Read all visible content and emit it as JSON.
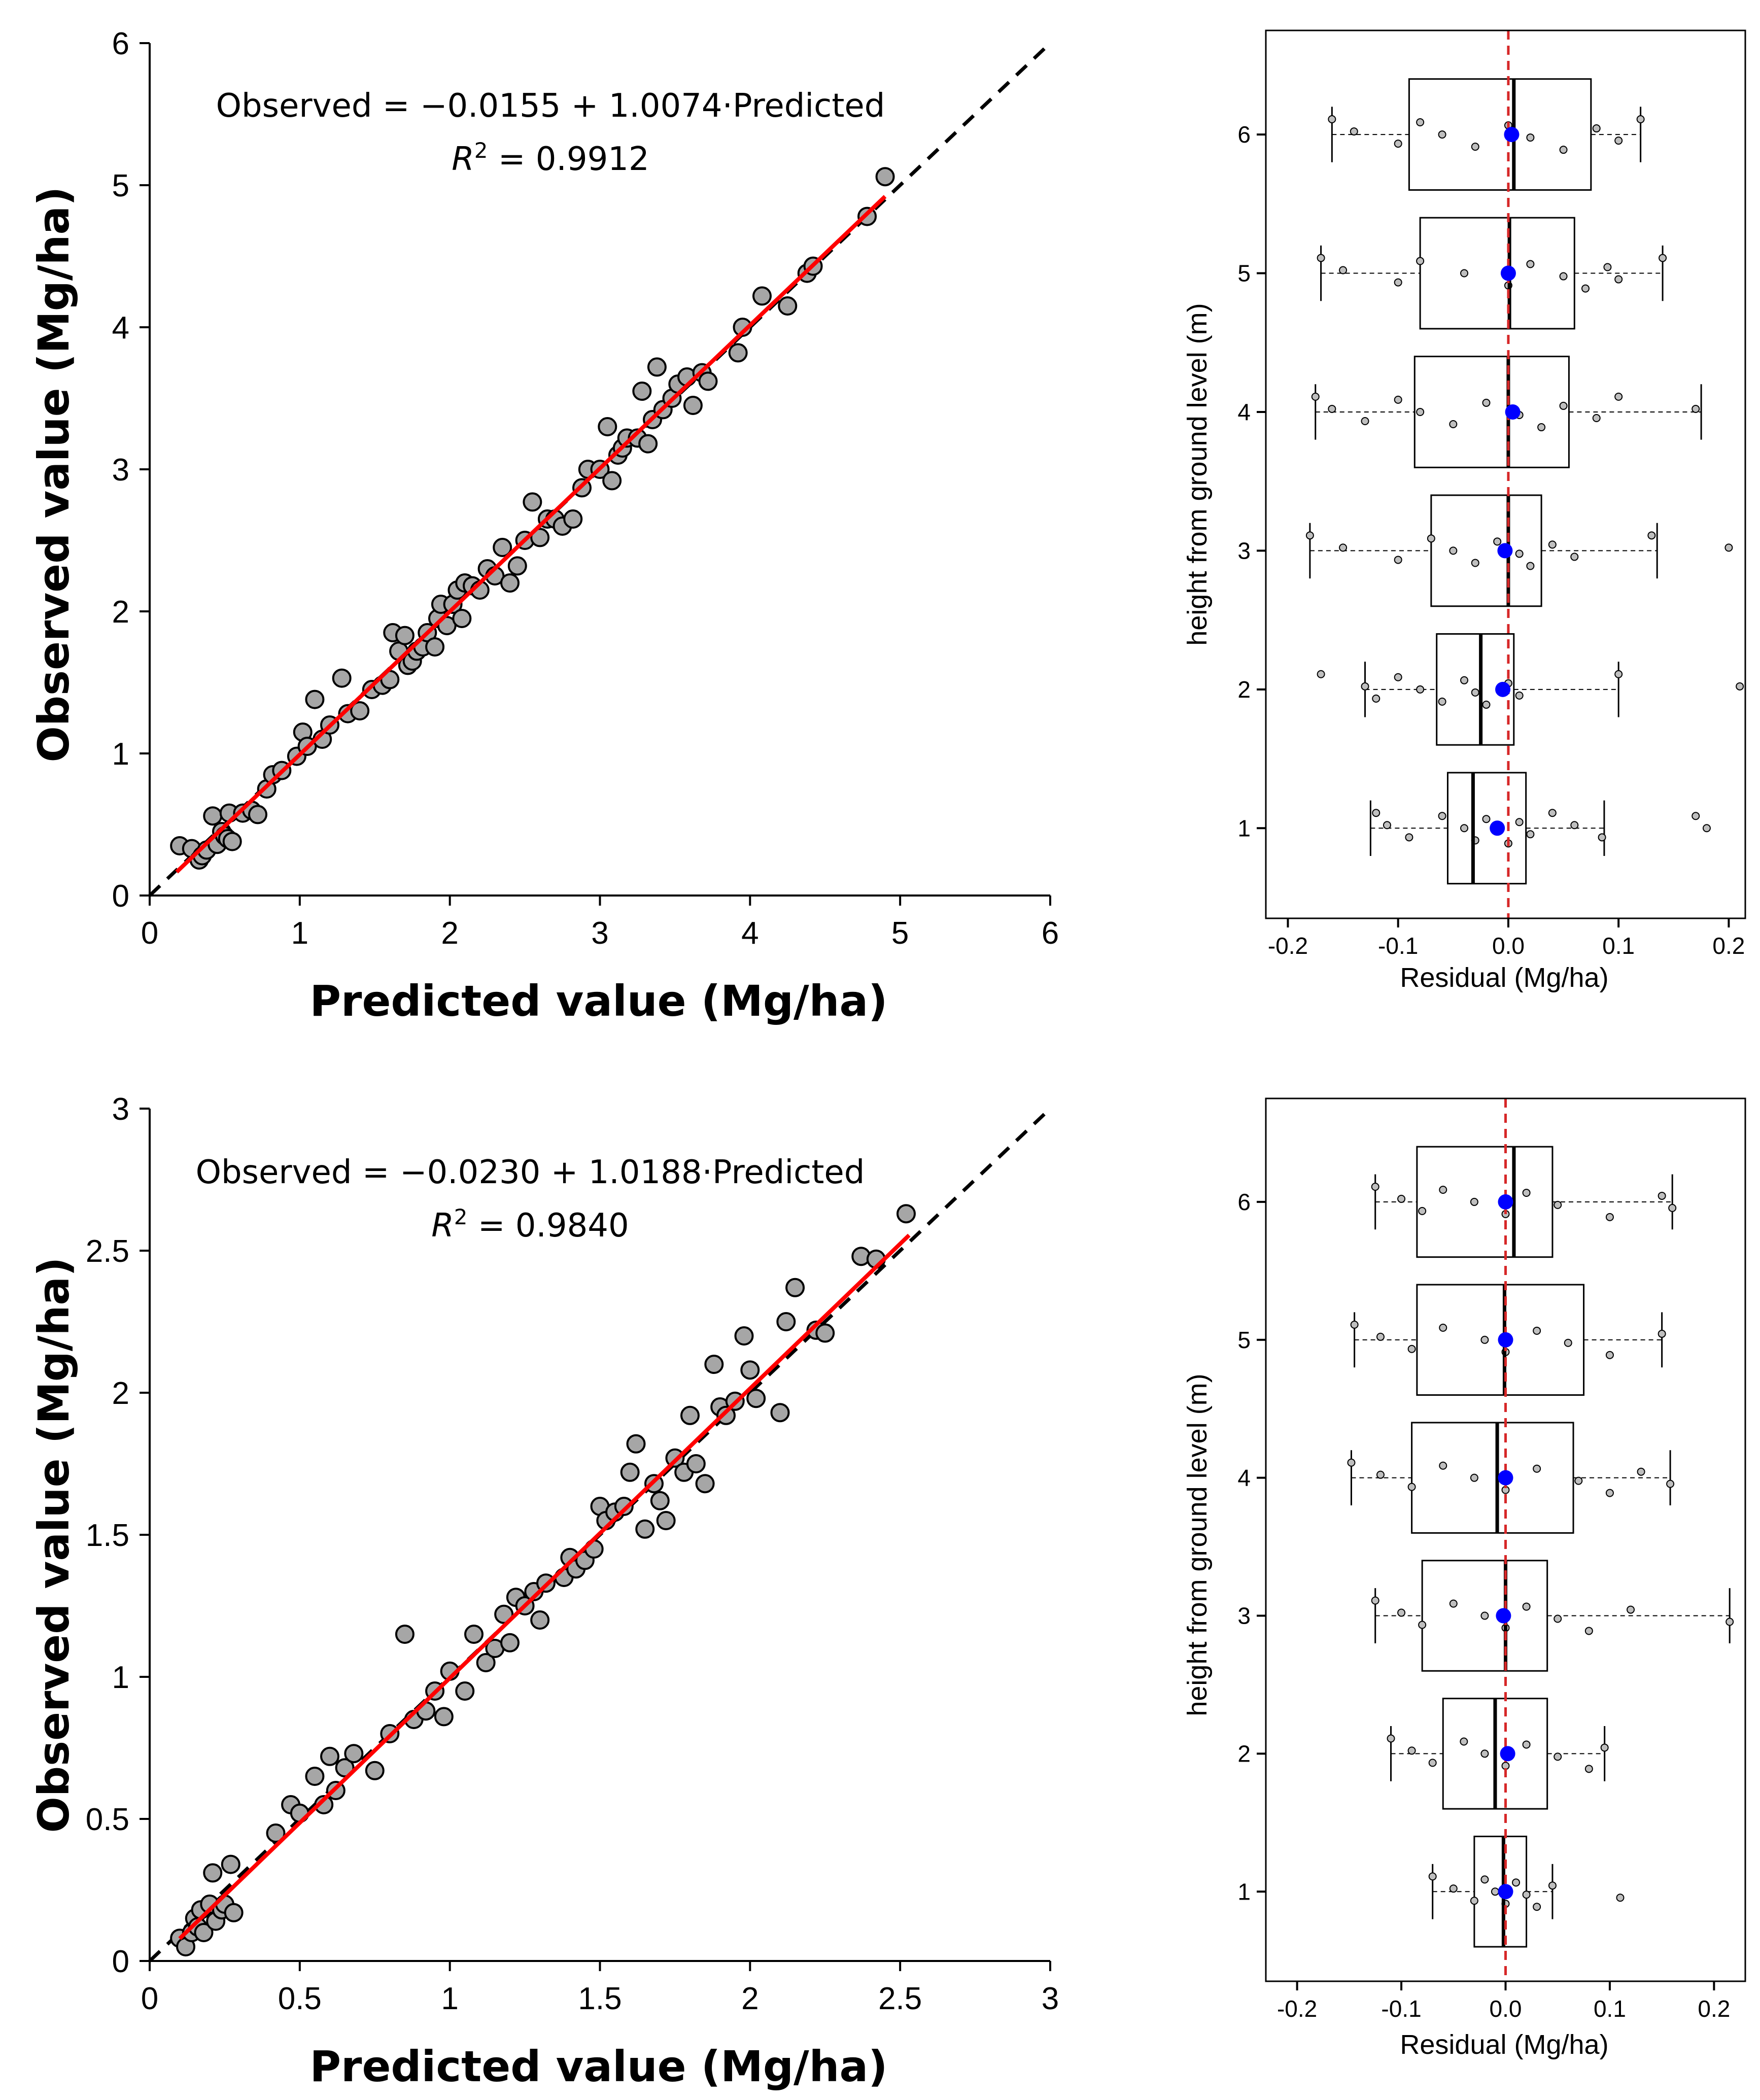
{
  "colors": {
    "point_fill": "#a6a6a6",
    "fit_line": "#ff0000",
    "one_to_one": "#000000",
    "mean_marker": "#0000ff",
    "zero_line": "#d62728",
    "jitter_fill": "#bfbfbf"
  },
  "chart_data": [
    {
      "type": "scatter",
      "panel": "top-left",
      "xlabel": "Predicted value (Mg/ha)",
      "ylabel": "Observed value (Mg/ha)",
      "xlim": [
        0,
        6
      ],
      "ylim": [
        0,
        6
      ],
      "xticks": [
        "0",
        "1",
        "2",
        "3",
        "4",
        "5",
        "6"
      ],
      "yticks": [
        "0",
        "1",
        "2",
        "3",
        "4",
        "5",
        "6"
      ],
      "equation": "Observed = −0.0155 + 1.0074·Predicted",
      "r2_label": "R",
      "r2_sup": "2",
      "r2_value": " = 0.9912",
      "intercept": -0.0155,
      "slope": 1.0074,
      "fit_range": [
        0.18,
        4.9
      ],
      "one_to_one": true,
      "points": [
        [
          0.2,
          0.35
        ],
        [
          0.28,
          0.33
        ],
        [
          0.33,
          0.25
        ],
        [
          0.35,
          0.28
        ],
        [
          0.38,
          0.32
        ],
        [
          0.42,
          0.56
        ],
        [
          0.45,
          0.36
        ],
        [
          0.48,
          0.45
        ],
        [
          0.5,
          0.42
        ],
        [
          0.52,
          0.4
        ],
        [
          0.53,
          0.58
        ],
        [
          0.55,
          0.38
        ],
        [
          0.62,
          0.58
        ],
        [
          0.68,
          0.6
        ],
        [
          0.72,
          0.57
        ],
        [
          0.78,
          0.75
        ],
        [
          0.82,
          0.85
        ],
        [
          0.88,
          0.88
        ],
        [
          0.98,
          0.98
        ],
        [
          1.02,
          1.15
        ],
        [
          1.05,
          1.05
        ],
        [
          1.1,
          1.38
        ],
        [
          1.15,
          1.1
        ],
        [
          1.2,
          1.2
        ],
        [
          1.28,
          1.53
        ],
        [
          1.32,
          1.28
        ],
        [
          1.4,
          1.3
        ],
        [
          1.48,
          1.45
        ],
        [
          1.55,
          1.48
        ],
        [
          1.6,
          1.52
        ],
        [
          1.62,
          1.85
        ],
        [
          1.66,
          1.72
        ],
        [
          1.7,
          1.83
        ],
        [
          1.72,
          1.62
        ],
        [
          1.75,
          1.65
        ],
        [
          1.78,
          1.72
        ],
        [
          1.82,
          1.75
        ],
        [
          1.85,
          1.85
        ],
        [
          1.9,
          1.75
        ],
        [
          1.92,
          1.95
        ],
        [
          1.94,
          2.05
        ],
        [
          1.98,
          1.9
        ],
        [
          2.02,
          2.05
        ],
        [
          2.05,
          2.15
        ],
        [
          2.08,
          1.95
        ],
        [
          2.1,
          2.2
        ],
        [
          2.15,
          2.18
        ],
        [
          2.2,
          2.15
        ],
        [
          2.25,
          2.3
        ],
        [
          2.3,
          2.25
        ],
        [
          2.35,
          2.45
        ],
        [
          2.4,
          2.2
        ],
        [
          2.45,
          2.32
        ],
        [
          2.5,
          2.5
        ],
        [
          2.55,
          2.77
        ],
        [
          2.6,
          2.52
        ],
        [
          2.65,
          2.65
        ],
        [
          2.7,
          2.65
        ],
        [
          2.75,
          2.6
        ],
        [
          2.82,
          2.65
        ],
        [
          2.88,
          2.87
        ],
        [
          2.92,
          3.0
        ],
        [
          3.0,
          3.0
        ],
        [
          3.05,
          3.3
        ],
        [
          3.08,
          2.92
        ],
        [
          3.12,
          3.1
        ],
        [
          3.15,
          3.15
        ],
        [
          3.18,
          3.22
        ],
        [
          3.25,
          3.22
        ],
        [
          3.28,
          3.55
        ],
        [
          3.32,
          3.18
        ],
        [
          3.35,
          3.35
        ],
        [
          3.38,
          3.72
        ],
        [
          3.42,
          3.42
        ],
        [
          3.48,
          3.5
        ],
        [
          3.52,
          3.6
        ],
        [
          3.58,
          3.65
        ],
        [
          3.62,
          3.45
        ],
        [
          3.68,
          3.68
        ],
        [
          3.72,
          3.62
        ],
        [
          3.92,
          3.82
        ],
        [
          3.95,
          4.0
        ],
        [
          4.08,
          4.22
        ],
        [
          4.25,
          4.15
        ],
        [
          4.38,
          4.38
        ],
        [
          4.42,
          4.43
        ],
        [
          4.78,
          4.78
        ],
        [
          4.9,
          5.06
        ]
      ]
    },
    {
      "type": "scatter",
      "panel": "bottom-left",
      "xlabel": "Predicted value (Mg/ha)",
      "ylabel": "Observed value (Mg/ha)",
      "xlim": [
        0,
        3
      ],
      "ylim": [
        0,
        3
      ],
      "xticks": [
        "0",
        "0.5",
        "1",
        "1.5",
        "2",
        "2.5",
        "3"
      ],
      "yticks": [
        "0",
        "0.5",
        "1",
        "1.5",
        "2",
        "2.5",
        "3"
      ],
      "equation": "Observed = −0.0230 + 1.0188·Predicted",
      "r2_label": "R",
      "r2_sup": "2",
      "r2_value": " = 0.9840",
      "intercept": -0.023,
      "slope": 1.0188,
      "fit_range": [
        0.1,
        2.53
      ],
      "one_to_one": true,
      "points": [
        [
          0.1,
          0.08
        ],
        [
          0.12,
          0.05
        ],
        [
          0.14,
          0.1
        ],
        [
          0.15,
          0.15
        ],
        [
          0.16,
          0.12
        ],
        [
          0.17,
          0.18
        ],
        [
          0.18,
          0.1
        ],
        [
          0.2,
          0.2
        ],
        [
          0.21,
          0.31
        ],
        [
          0.22,
          0.14
        ],
        [
          0.24,
          0.18
        ],
        [
          0.25,
          0.2
        ],
        [
          0.27,
          0.34
        ],
        [
          0.28,
          0.17
        ],
        [
          0.42,
          0.45
        ],
        [
          0.47,
          0.55
        ],
        [
          0.5,
          0.52
        ],
        [
          0.55,
          0.65
        ],
        [
          0.58,
          0.55
        ],
        [
          0.6,
          0.72
        ],
        [
          0.62,
          0.6
        ],
        [
          0.65,
          0.68
        ],
        [
          0.68,
          0.73
        ],
        [
          0.75,
          0.67
        ],
        [
          0.8,
          0.8
        ],
        [
          0.85,
          1.15
        ],
        [
          0.88,
          0.85
        ],
        [
          0.92,
          0.88
        ],
        [
          0.95,
          0.95
        ],
        [
          0.98,
          0.86
        ],
        [
          1.0,
          1.02
        ],
        [
          1.05,
          0.95
        ],
        [
          1.08,
          1.15
        ],
        [
          1.12,
          1.05
        ],
        [
          1.15,
          1.1
        ],
        [
          1.18,
          1.22
        ],
        [
          1.2,
          1.12
        ],
        [
          1.22,
          1.28
        ],
        [
          1.25,
          1.25
        ],
        [
          1.28,
          1.3
        ],
        [
          1.3,
          1.2
        ],
        [
          1.32,
          1.33
        ],
        [
          1.38,
          1.35
        ],
        [
          1.4,
          1.42
        ],
        [
          1.42,
          1.38
        ],
        [
          1.45,
          1.41
        ],
        [
          1.48,
          1.45
        ],
        [
          1.5,
          1.6
        ],
        [
          1.52,
          1.55
        ],
        [
          1.55,
          1.58
        ],
        [
          1.58,
          1.6
        ],
        [
          1.6,
          1.72
        ],
        [
          1.62,
          1.82
        ],
        [
          1.65,
          1.52
        ],
        [
          1.68,
          1.68
        ],
        [
          1.7,
          1.62
        ],
        [
          1.72,
          1.55
        ],
        [
          1.75,
          1.77
        ],
        [
          1.78,
          1.72
        ],
        [
          1.8,
          1.92
        ],
        [
          1.82,
          1.75
        ],
        [
          1.85,
          1.68
        ],
        [
          1.88,
          2.1
        ],
        [
          1.9,
          1.95
        ],
        [
          1.92,
          1.92
        ],
        [
          1.95,
          1.97
        ],
        [
          1.98,
          2.2
        ],
        [
          2.0,
          2.08
        ],
        [
          2.02,
          1.98
        ],
        [
          2.1,
          1.93
        ],
        [
          2.12,
          2.25
        ],
        [
          2.15,
          2.37
        ],
        [
          2.22,
          2.22
        ],
        [
          2.25,
          2.21
        ],
        [
          2.37,
          2.48
        ],
        [
          2.42,
          2.47
        ],
        [
          2.52,
          2.63
        ]
      ]
    },
    {
      "type": "boxplot",
      "panel": "top-right",
      "orientation": "horizontal",
      "xlabel": "Residual (Mg/ha)",
      "ylabel": "height from ground level (m)",
      "xlim": [
        -0.22,
        0.215
      ],
      "ylim": [
        0.35,
        6.75
      ],
      "xticks": [
        "-0.2",
        "-0.1",
        "0.0",
        "0.1",
        "0.2"
      ],
      "yticks": [
        "1",
        "2",
        "3",
        "4",
        "5",
        "6"
      ],
      "reference_x": 0.0,
      "boxes": [
        {
          "category": 1,
          "whisker_low": -0.125,
          "q1": -0.055,
          "median": -0.032,
          "q3": 0.016,
          "whisker_high": 0.087,
          "mean": -0.01,
          "points": [
            -0.12,
            -0.11,
            -0.09,
            -0.06,
            -0.04,
            -0.03,
            -0.02,
            -0.01,
            0.0,
            0.01,
            0.02,
            0.04,
            0.06,
            0.085,
            0.17,
            0.18
          ]
        },
        {
          "category": 2,
          "whisker_low": -0.13,
          "q1": -0.065,
          "median": -0.025,
          "q3": 0.005,
          "whisker_high": 0.1,
          "mean": -0.005,
          "points": [
            -0.17,
            -0.13,
            -0.12,
            -0.1,
            -0.08,
            -0.06,
            -0.04,
            -0.03,
            -0.02,
            0.0,
            0.01,
            0.1,
            0.21
          ]
        },
        {
          "category": 3,
          "whisker_low": -0.18,
          "q1": -0.07,
          "median": 0.0,
          "q3": 0.03,
          "whisker_high": 0.135,
          "mean": -0.003,
          "points": [
            -0.18,
            -0.15,
            -0.1,
            -0.07,
            -0.05,
            -0.03,
            -0.01,
            0.01,
            0.02,
            0.04,
            0.06,
            0.13,
            0.2
          ]
        },
        {
          "category": 4,
          "whisker_low": -0.175,
          "q1": -0.085,
          "median": 0.0,
          "q3": 0.055,
          "whisker_high": 0.175,
          "mean": 0.004,
          "points": [
            -0.175,
            -0.16,
            -0.13,
            -0.1,
            -0.08,
            -0.05,
            -0.02,
            0.01,
            0.03,
            0.05,
            0.08,
            0.1,
            0.17
          ]
        },
        {
          "category": 5,
          "whisker_low": -0.17,
          "q1": -0.08,
          "median": 0.001,
          "q3": 0.06,
          "whisker_high": 0.14,
          "mean": 0.0,
          "points": [
            -0.17,
            -0.15,
            -0.1,
            -0.08,
            -0.04,
            0.0,
            0.02,
            0.05,
            0.07,
            0.09,
            0.1,
            0.14
          ]
        },
        {
          "category": 6,
          "whisker_low": -0.16,
          "q1": -0.09,
          "median": 0.005,
          "q3": 0.075,
          "whisker_high": 0.12,
          "mean": 0.003,
          "points": [
            -0.16,
            -0.14,
            -0.1,
            -0.08,
            -0.06,
            -0.03,
            0.0,
            0.02,
            0.05,
            0.08,
            0.1,
            0.12
          ]
        }
      ]
    },
    {
      "type": "boxplot",
      "panel": "bottom-right",
      "orientation": "horizontal",
      "xlabel": "Residual (Mg/ha)",
      "ylabel": "height from ground level (m)",
      "xlim": [
        -0.23,
        0.23
      ],
      "ylim": [
        0.35,
        6.75
      ],
      "xticks": [
        "-0.2",
        "-0.1",
        "0.0",
        "0.1",
        "0.2"
      ],
      "yticks": [
        "1",
        "2",
        "3",
        "4",
        "5",
        "6"
      ],
      "reference_x": 0.0,
      "boxes": [
        {
          "category": 1,
          "whisker_low": -0.07,
          "q1": -0.03,
          "median": -0.002,
          "q3": 0.02,
          "whisker_high": 0.045,
          "mean": 0.0,
          "points": [
            -0.07,
            -0.05,
            -0.03,
            -0.02,
            -0.01,
            0.0,
            0.01,
            0.02,
            0.03,
            0.045,
            0.11
          ]
        },
        {
          "category": 2,
          "whisker_low": -0.11,
          "q1": -0.06,
          "median": -0.01,
          "q3": 0.04,
          "whisker_high": 0.095,
          "mean": 0.002,
          "points": [
            -0.11,
            -0.09,
            -0.07,
            -0.04,
            -0.02,
            0.0,
            0.02,
            0.05,
            0.08,
            0.095
          ]
        },
        {
          "category": 3,
          "whisker_low": -0.125,
          "q1": -0.08,
          "median": 0.0,
          "q3": 0.04,
          "whisker_high": 0.215,
          "mean": -0.002,
          "points": [
            -0.125,
            -0.1,
            -0.08,
            -0.05,
            -0.02,
            0.0,
            0.02,
            0.05,
            0.08,
            0.12,
            0.215
          ]
        },
        {
          "category": 4,
          "whisker_low": -0.148,
          "q1": -0.09,
          "median": -0.008,
          "q3": 0.065,
          "whisker_high": 0.158,
          "mean": 0.0,
          "points": [
            -0.148,
            -0.12,
            -0.09,
            -0.06,
            -0.03,
            0.0,
            0.03,
            0.07,
            0.1,
            0.13,
            0.158
          ]
        },
        {
          "category": 5,
          "whisker_low": -0.145,
          "q1": -0.085,
          "median": -0.001,
          "q3": 0.075,
          "whisker_high": 0.15,
          "mean": 0.0,
          "points": [
            -0.145,
            -0.12,
            -0.09,
            -0.06,
            -0.02,
            0.0,
            0.03,
            0.06,
            0.1,
            0.15
          ]
        },
        {
          "category": 6,
          "whisker_low": -0.125,
          "q1": -0.085,
          "median": 0.008,
          "q3": 0.045,
          "whisker_high": 0.16,
          "mean": 0.0,
          "points": [
            -0.125,
            -0.1,
            -0.08,
            -0.06,
            -0.03,
            0.0,
            0.02,
            0.05,
            0.1,
            0.15,
            0.16
          ]
        }
      ]
    }
  ]
}
